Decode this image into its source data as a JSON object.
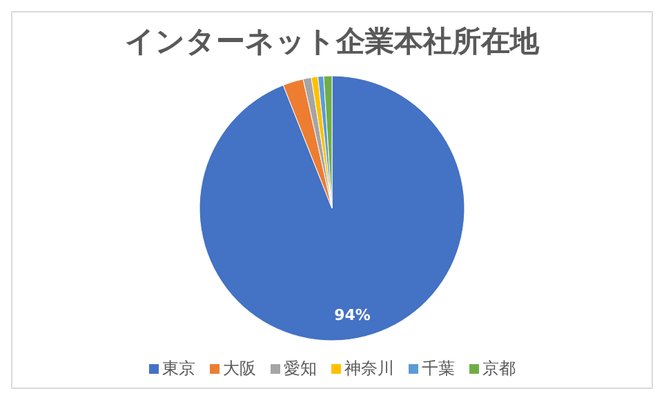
{
  "chart_data": {
    "type": "pie",
    "title": "インターネット企業本社所在地",
    "categories": [
      "東京",
      "大阪",
      "愛知",
      "神奈川",
      "千葉",
      "京都"
    ],
    "values": [
      94,
      2.5,
      1,
      0.8,
      0.7,
      1
    ],
    "colors": [
      "#4472c4",
      "#ed7d31",
      "#a5a5a5",
      "#ffc000",
      "#5b9bd5",
      "#70ad47"
    ],
    "value_labels": [
      "94%",
      null,
      null,
      null,
      null,
      null
    ],
    "legend": "bottom"
  }
}
